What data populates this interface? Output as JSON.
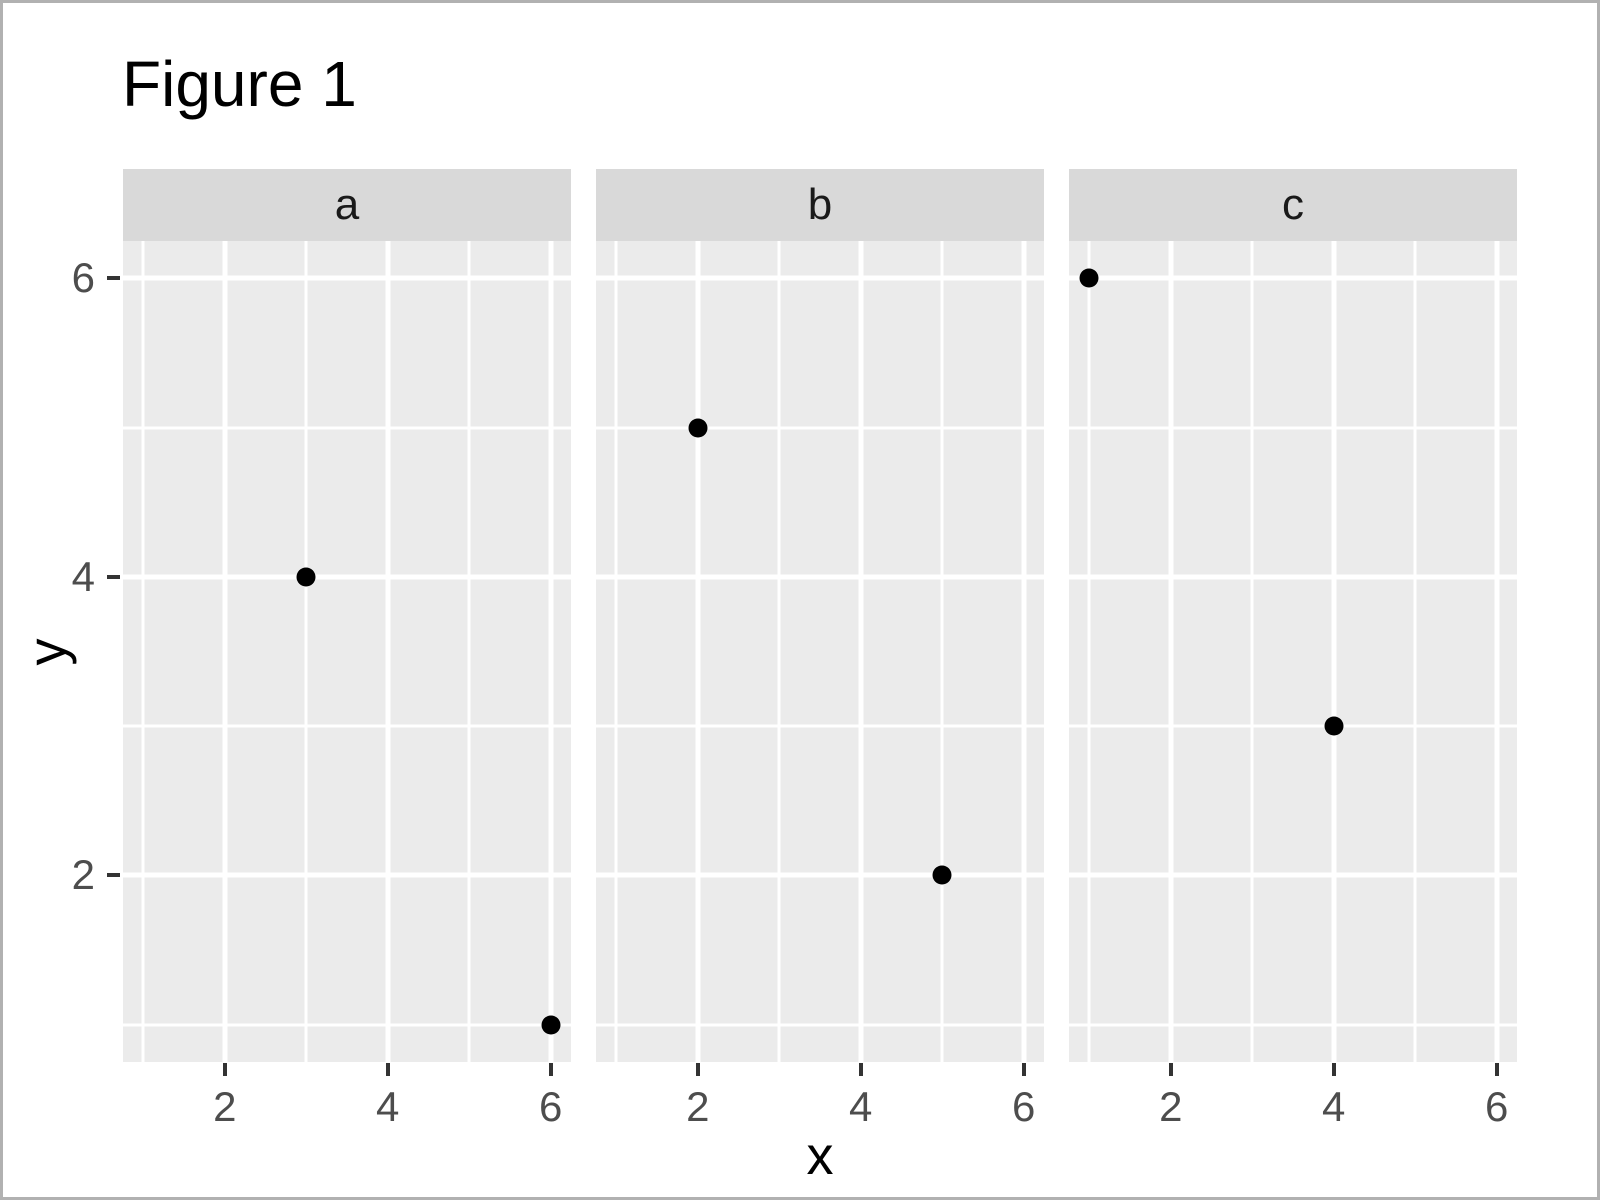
{
  "title": "Figure 1",
  "axes": {
    "x_label": "x",
    "y_label": "y",
    "x_ticks": [
      2,
      4,
      6
    ],
    "y_ticks": [
      2,
      4,
      6
    ],
    "x_minor_gridlines": [
      1,
      3,
      5
    ],
    "y_minor_gridlines": [
      1,
      3,
      5
    ],
    "x_domain": [
      0.75,
      6.25
    ],
    "y_domain": [
      0.75,
      6.25
    ]
  },
  "chart_data": {
    "type": "scatter",
    "title": "Figure 1",
    "xlabel": "x",
    "ylabel": "y",
    "xlim": [
      0.75,
      6.25
    ],
    "ylim": [
      0.75,
      6.25
    ],
    "grid": true,
    "legend": false,
    "facets": [
      {
        "label": "a",
        "points": [
          {
            "x": 3,
            "y": 4
          },
          {
            "x": 6,
            "y": 1
          }
        ]
      },
      {
        "label": "b",
        "points": [
          {
            "x": 2,
            "y": 5
          },
          {
            "x": 5,
            "y": 2
          }
        ]
      },
      {
        "label": "c",
        "points": [
          {
            "x": 1,
            "y": 6
          },
          {
            "x": 4,
            "y": 3
          }
        ]
      }
    ]
  },
  "colors": {
    "canvas_bg": "#ffffff",
    "panel_bg": "#ebebeb",
    "strip_bg": "#d9d9d9",
    "gridline": "#ffffff",
    "point": "#000000",
    "tick_mark": "#333333",
    "tick_label": "#4d4d4d",
    "strip_label": "#1a1a1a",
    "axis_title": "#000000",
    "title": "#000000",
    "frame_border": "#b1b1b1"
  }
}
